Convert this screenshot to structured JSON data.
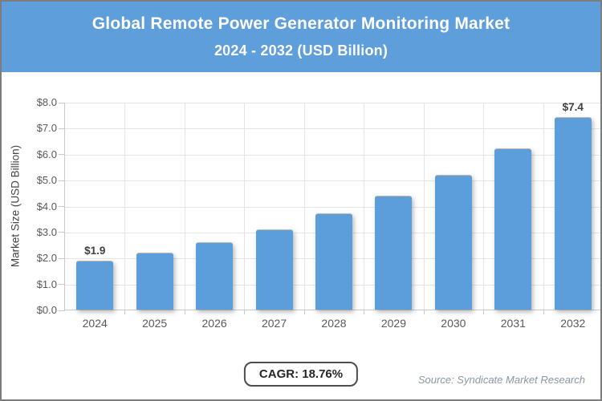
{
  "header": {
    "title": "Global Remote Power Generator Monitoring Market",
    "subtitle": "2024 - 2032 (USD Billion)"
  },
  "chart_data": {
    "type": "bar",
    "title": "Global Remote Power Generator Monitoring Market 2024 - 2032 (USD Billion)",
    "categories": [
      "2024",
      "2025",
      "2026",
      "2027",
      "2028",
      "2029",
      "2030",
      "2031",
      "2032"
    ],
    "values": [
      1.9,
      2.2,
      2.6,
      3.1,
      3.7,
      4.4,
      5.2,
      6.2,
      7.4
    ],
    "bar_labels": [
      "$1.9",
      "",
      "",
      "",
      "",
      "",
      "",
      "",
      "$7.4"
    ],
    "xlabel": "",
    "ylabel": "Market Size (USD Billion)",
    "ylim": [
      0,
      8
    ],
    "ytick_step": 1,
    "ytick_labels": [
      "$0.0",
      "$1.0",
      "$2.0",
      "$3.0",
      "$4.0",
      "$5.0",
      "$6.0",
      "$7.0",
      "$8.0"
    ],
    "grid": true,
    "legend": "none"
  },
  "footer": {
    "cagr_label": "CAGR: 18.76%",
    "source": "Source: Syndicate Market Research"
  },
  "colors": {
    "header_bg": "#5E9EDB",
    "bar": "#5C9DDB",
    "gridline": "#E4E4E4",
    "axis": "#C9C9C9",
    "tick_text": "#595959",
    "value_text": "#404040",
    "cagr_border": "#4D4D4D",
    "source_text": "#8A96A3",
    "frame_border": "#7D7D7D"
  }
}
